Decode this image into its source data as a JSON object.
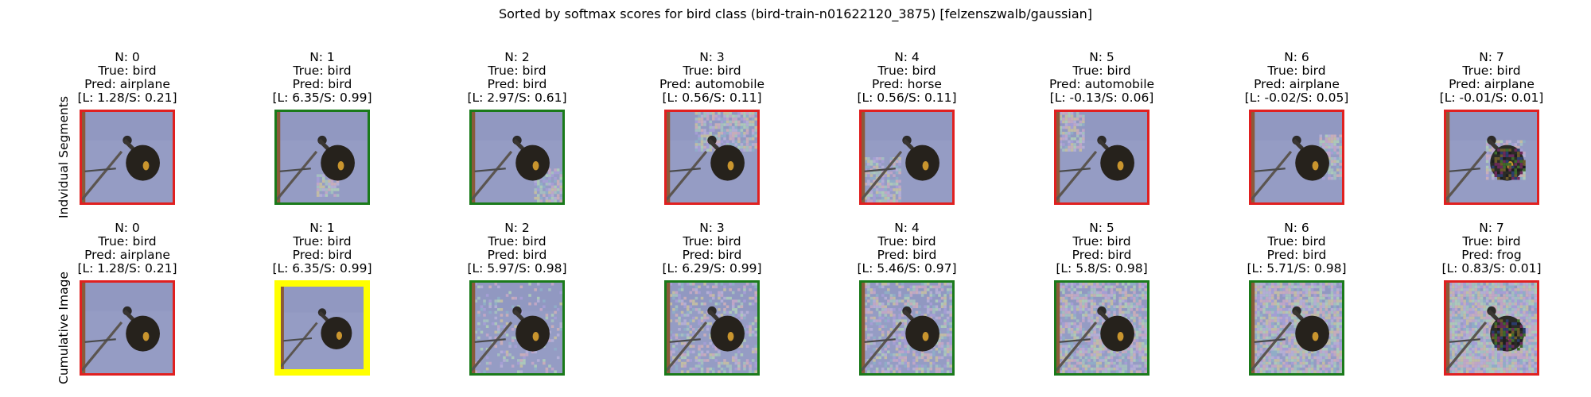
{
  "chart_data": {
    "type": "image-grid",
    "title": "Sorted by softmax scores for bird class (bird-train-n01622120_3875) [felzenszwalb/gaussian]",
    "label_prefix": {
      "index": "N: ",
      "true": "True: ",
      "pred": "Pred: "
    },
    "border_colors": {
      "correct": "#1a7a1a",
      "incorrect": "#e02020",
      "highlight": "#ffff00"
    },
    "rows": [
      {
        "label": "Indvidual Segments",
        "panels": [
          {
            "n": "0",
            "true": "bird",
            "pred": "airplane",
            "score_text": "[L: 1.28/S: 0.21]",
            "logit": 1.28,
            "softmax": 0.21,
            "border": "incorrect"
          },
          {
            "n": "1",
            "true": "bird",
            "pred": "bird",
            "score_text": "[L: 6.35/S: 0.99]",
            "logit": 6.35,
            "softmax": 0.99,
            "border": "correct"
          },
          {
            "n": "2",
            "true": "bird",
            "pred": "bird",
            "score_text": "[L: 2.97/S: 0.61]",
            "logit": 2.97,
            "softmax": 0.61,
            "border": "correct"
          },
          {
            "n": "3",
            "true": "bird",
            "pred": "automobile",
            "score_text": "[L: 0.56/S: 0.11]",
            "logit": 0.56,
            "softmax": 0.11,
            "border": "incorrect"
          },
          {
            "n": "4",
            "true": "bird",
            "pred": "horse",
            "score_text": "[L: 0.56/S: 0.11]",
            "logit": 0.56,
            "softmax": 0.11,
            "border": "incorrect"
          },
          {
            "n": "5",
            "true": "bird",
            "pred": "automobile",
            "score_text": "[L: -0.13/S: 0.06]",
            "logit": -0.13,
            "softmax": 0.06,
            "border": "incorrect"
          },
          {
            "n": "6",
            "true": "bird",
            "pred": "airplane",
            "score_text": "[L: -0.02/S: 0.05]",
            "logit": -0.02,
            "softmax": 0.05,
            "border": "incorrect"
          },
          {
            "n": "7",
            "true": "bird",
            "pred": "airplane",
            "score_text": "[L: -0.01/S: 0.01]",
            "logit": -0.01,
            "softmax": 0.01,
            "border": "incorrect"
          }
        ]
      },
      {
        "label": "Cumulative Image",
        "panels": [
          {
            "n": "0",
            "true": "bird",
            "pred": "airplane",
            "score_text": "[L: 1.28/S: 0.21]",
            "logit": 1.28,
            "softmax": 0.21,
            "border": "incorrect"
          },
          {
            "n": "1",
            "true": "bird",
            "pred": "bird",
            "score_text": "[L: 6.35/S: 0.99]",
            "logit": 6.35,
            "softmax": 0.99,
            "border": "highlight"
          },
          {
            "n": "2",
            "true": "bird",
            "pred": "bird",
            "score_text": "[L: 5.97/S: 0.98]",
            "logit": 5.97,
            "softmax": 0.98,
            "border": "correct"
          },
          {
            "n": "3",
            "true": "bird",
            "pred": "bird",
            "score_text": "[L: 6.29/S: 0.99]",
            "logit": 6.29,
            "softmax": 0.99,
            "border": "correct"
          },
          {
            "n": "4",
            "true": "bird",
            "pred": "bird",
            "score_text": "[L: 5.46/S: 0.97]",
            "logit": 5.46,
            "softmax": 0.97,
            "border": "correct"
          },
          {
            "n": "5",
            "true": "bird",
            "pred": "bird",
            "score_text": "[L: 5.8/S: 0.98]",
            "logit": 5.8,
            "softmax": 0.98,
            "border": "correct"
          },
          {
            "n": "6",
            "true": "bird",
            "pred": "bird",
            "score_text": "[L: 5.71/S: 0.98]",
            "logit": 5.71,
            "softmax": 0.98,
            "border": "correct"
          },
          {
            "n": "7",
            "true": "bird",
            "pred": "frog",
            "score_text": "[L: 0.83/S: 0.01]",
            "logit": 0.83,
            "softmax": 0.01,
            "border": "incorrect"
          }
        ]
      }
    ]
  }
}
